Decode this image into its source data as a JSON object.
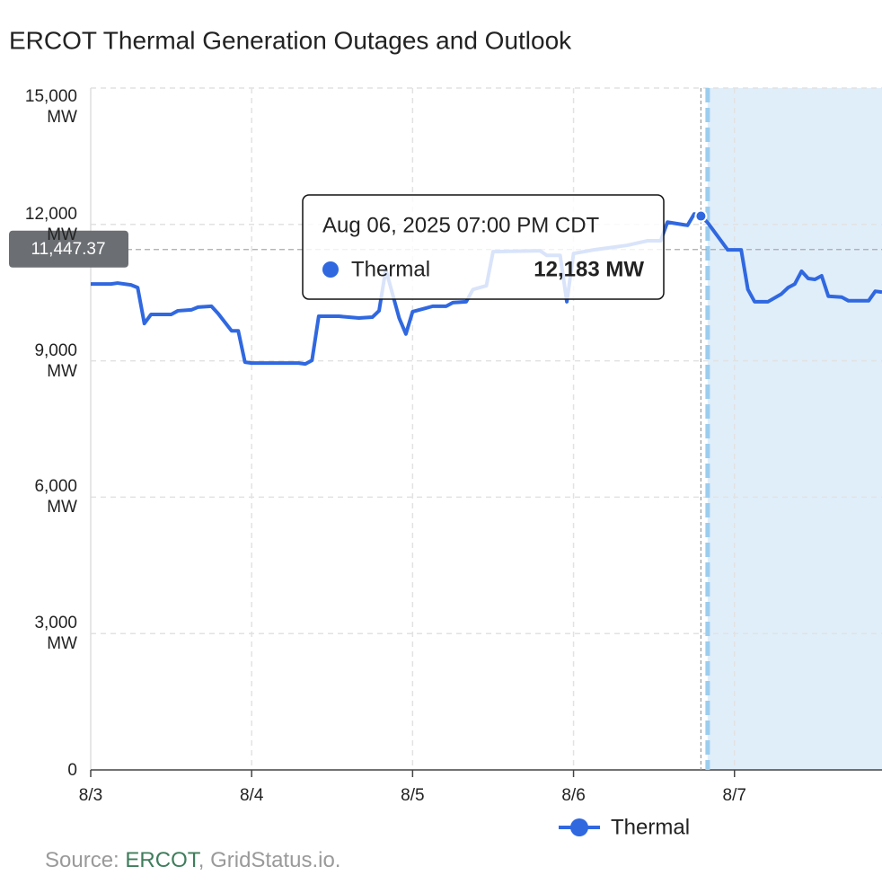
{
  "chart_data": {
    "type": "line",
    "title": "ERCOT Thermal Generation Outages and Outlook",
    "x": [
      0,
      3,
      4,
      6,
      7,
      8,
      9,
      12,
      13,
      15,
      16,
      18,
      19,
      21,
      22,
      23,
      24,
      31,
      32,
      33,
      34,
      37,
      40,
      42,
      43,
      44,
      46,
      47,
      48,
      50,
      51,
      53,
      54,
      56,
      57,
      59,
      60,
      67,
      68,
      70,
      71,
      72,
      75,
      77,
      80,
      83,
      85,
      86,
      89,
      90,
      91,
      92,
      93,
      95,
      97,
      98,
      99,
      101,
      103,
      104,
      105,
      106,
      107,
      108,
      109,
      110,
      112,
      113,
      116,
      117,
      118
    ],
    "series": [
      {
        "name": "Thermal",
        "color": "#3068e0",
        "values": [
          10690,
          10690,
          10710,
          10670,
          10610,
          9820,
          10020,
          10020,
          10100,
          10120,
          10180,
          10200,
          10040,
          9660,
          9660,
          8970,
          8950,
          8950,
          8930,
          9010,
          9980,
          9980,
          9940,
          9960,
          10100,
          11010,
          9940,
          9590,
          10080,
          10160,
          10200,
          10200,
          10280,
          10300,
          10570,
          10650,
          11400,
          11420,
          11320,
          11320,
          10300,
          11360,
          11440,
          11480,
          11540,
          11640,
          11640,
          12050,
          11980,
          12230,
          12183,
          12040,
          11840,
          11440,
          11440,
          10570,
          10300,
          10300,
          10470,
          10610,
          10690,
          10970,
          10810,
          10790,
          10870,
          10420,
          10400,
          10320,
          10320,
          10530,
          10510
        ]
      }
    ],
    "xlim": [
      0,
      118
    ],
    "xticks": [
      {
        "value": 0,
        "label": "8/3"
      },
      {
        "value": 24,
        "label": "8/4"
      },
      {
        "value": 48,
        "label": "8/5"
      },
      {
        "value": 72,
        "label": "8/6"
      },
      {
        "value": 96,
        "label": "8/7"
      }
    ],
    "ylim": [
      0,
      15000
    ],
    "yticks": [
      0,
      {
        "value": 3000,
        "label": "3,000 MW"
      },
      {
        "value": 6000,
        "label": "6,000 MW"
      },
      {
        "value": 9000,
        "label": "9,000 MW"
      },
      {
        "value": 12000,
        "label": "12,000 MW"
      },
      {
        "value": 15000,
        "label": "15,000 MW"
      }
    ],
    "grid": true,
    "forecast_from": 92,
    "crosshair": {
      "value": 11447.37,
      "label": "11,447.37"
    },
    "tooltip": {
      "x": 91,
      "title": "Aug 06, 2025 07:00 PM CDT",
      "value_label": "12,183 MW"
    },
    "source": {
      "prefix": "Source:",
      "link": "ERCOT",
      "rest": ", GridStatus.io."
    }
  }
}
